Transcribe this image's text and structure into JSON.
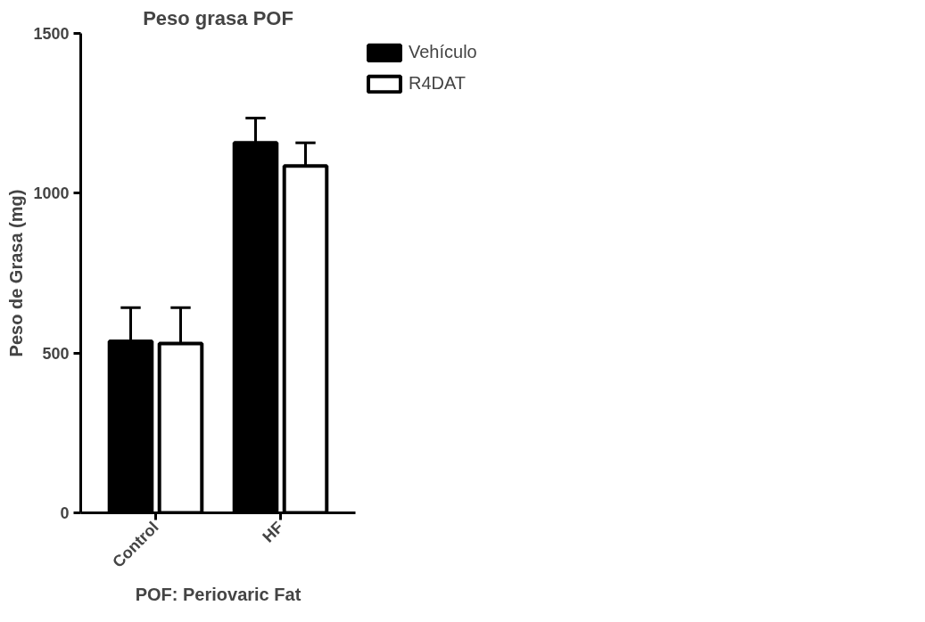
{
  "chart_data": {
    "type": "bar",
    "title": "Peso grasa POF",
    "xlabel": "POF: Periovaric Fat",
    "ylabel": "Peso de Grasa (mg)",
    "categories": [
      "Control",
      "HF"
    ],
    "series": [
      {
        "name": "Vehículo",
        "color": "#000000",
        "values": [
          537,
          1158
        ],
        "errors": [
          [
            537,
            642
          ],
          [
            1158,
            1235
          ]
        ]
      },
      {
        "name": "R4DAT",
        "color": "#ffffff",
        "values": [
          530,
          1085
        ],
        "errors": [
          [
            530,
            642
          ],
          [
            1085,
            1158
          ]
        ]
      }
    ],
    "ylim": [
      0,
      1500
    ],
    "yticks": [
      0,
      500,
      1000,
      1500
    ],
    "grid": false,
    "legend": "top right"
  }
}
